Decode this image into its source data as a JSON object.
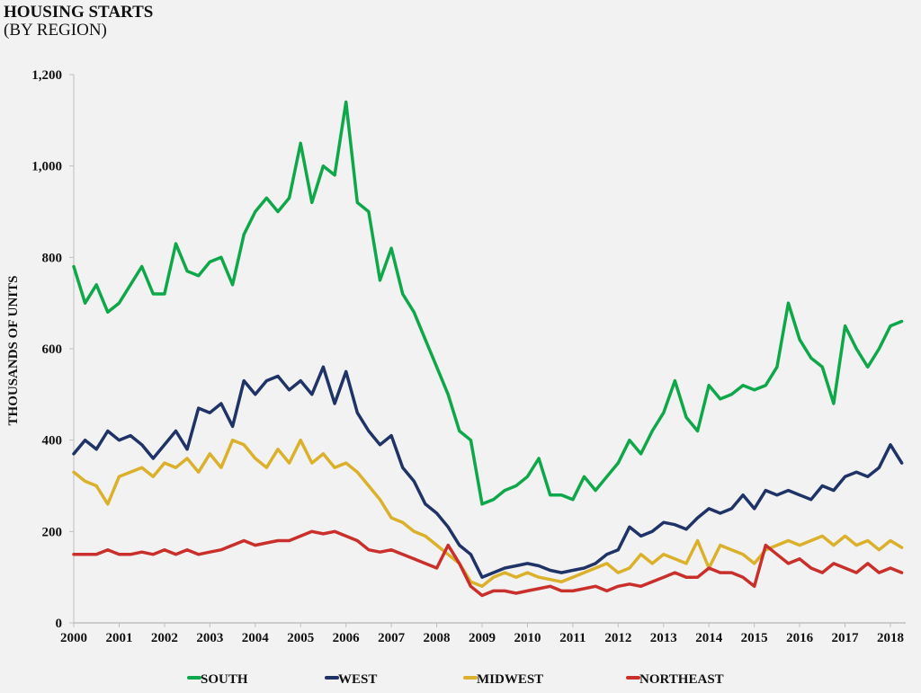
{
  "chart_data": {
    "type": "line",
    "title": "HOUSING STARTS",
    "subtitle": "(BY REGION)",
    "xlabel": "",
    "ylabel": "THOUSANDS OF UNITS",
    "xlim": [
      2000,
      2018.3
    ],
    "ylim": [
      0,
      1200
    ],
    "x_ticks": [
      "2000",
      "2001",
      "2002",
      "2003",
      "2004",
      "2005",
      "2006",
      "2007",
      "2008",
      "2009",
      "2010",
      "2011",
      "2012",
      "2013",
      "2014",
      "2015",
      "2016",
      "2017",
      "2018"
    ],
    "y_ticks": [
      "0",
      "200",
      "400",
      "600",
      "800",
      "1,000",
      "1,200"
    ],
    "grid": false,
    "legend": "bottom",
    "x": [
      2000,
      2000.25,
      2000.5,
      2000.75,
      2001,
      2001.25,
      2001.5,
      2001.75,
      2002,
      2002.25,
      2002.5,
      2002.75,
      2003,
      2003.25,
      2003.5,
      2003.75,
      2004,
      2004.25,
      2004.5,
      2004.75,
      2005,
      2005.25,
      2005.5,
      2005.75,
      2006,
      2006.25,
      2006.5,
      2006.75,
      2007,
      2007.25,
      2007.5,
      2007.75,
      2008,
      2008.25,
      2008.5,
      2008.75,
      2009,
      2009.25,
      2009.5,
      2009.75,
      2010,
      2010.25,
      2010.5,
      2010.75,
      2011,
      2011.25,
      2011.5,
      2011.75,
      2012,
      2012.25,
      2012.5,
      2012.75,
      2013,
      2013.25,
      2013.5,
      2013.75,
      2014,
      2014.25,
      2014.5,
      2014.75,
      2015,
      2015.25,
      2015.5,
      2015.75,
      2016,
      2016.25,
      2016.5,
      2016.75,
      2017,
      2017.25,
      2017.5,
      2017.75,
      2018,
      2018.25
    ],
    "series": [
      {
        "name": "SOUTH",
        "color": "#0ea84a",
        "values": [
          780,
          700,
          740,
          680,
          700,
          740,
          780,
          720,
          720,
          830,
          770,
          760,
          790,
          800,
          740,
          850,
          900,
          930,
          900,
          930,
          1050,
          920,
          1000,
          980,
          1140,
          920,
          900,
          750,
          820,
          720,
          680,
          620,
          560,
          500,
          420,
          400,
          260,
          270,
          290,
          300,
          320,
          360,
          280,
          280,
          270,
          320,
          290,
          320,
          350,
          400,
          370,
          420,
          460,
          530,
          450,
          420,
          520,
          490,
          500,
          520,
          510,
          520,
          560,
          700,
          620,
          580,
          560,
          480,
          650,
          600,
          560,
          600,
          650,
          660
        ]
      },
      {
        "name": "WEST",
        "color": "#1f3366",
        "values": [
          370,
          400,
          380,
          420,
          400,
          410,
          390,
          360,
          390,
          420,
          380,
          470,
          460,
          480,
          430,
          530,
          500,
          530,
          540,
          510,
          530,
          500,
          560,
          480,
          550,
          460,
          420,
          390,
          410,
          340,
          310,
          260,
          240,
          210,
          170,
          150,
          100,
          110,
          120,
          125,
          130,
          125,
          115,
          110,
          115,
          120,
          130,
          150,
          160,
          210,
          190,
          200,
          220,
          215,
          205,
          230,
          250,
          240,
          250,
          280,
          250,
          290,
          280,
          290,
          280,
          270,
          300,
          290,
          320,
          330,
          320,
          340,
          390,
          350
        ]
      },
      {
        "name": "MIDWEST",
        "color": "#dbb02a",
        "values": [
          330,
          310,
          300,
          260,
          320,
          330,
          340,
          320,
          350,
          340,
          360,
          330,
          370,
          340,
          400,
          390,
          360,
          340,
          380,
          350,
          400,
          350,
          370,
          340,
          350,
          330,
          300,
          270,
          230,
          220,
          200,
          190,
          170,
          150,
          130,
          90,
          80,
          100,
          110,
          100,
          110,
          100,
          95,
          90,
          100,
          110,
          120,
          130,
          110,
          120,
          150,
          130,
          150,
          140,
          130,
          180,
          120,
          170,
          160,
          150,
          130,
          160,
          170,
          180,
          170,
          180,
          190,
          170,
          190,
          170,
          180,
          160,
          180,
          165
        ]
      },
      {
        "name": "NORTHEAST",
        "color": "#c9302c",
        "values": [
          150,
          150,
          150,
          160,
          150,
          150,
          155,
          150,
          160,
          150,
          160,
          150,
          155,
          160,
          170,
          180,
          170,
          175,
          180,
          180,
          190,
          200,
          195,
          200,
          190,
          180,
          160,
          155,
          160,
          150,
          140,
          130,
          120,
          170,
          130,
          80,
          60,
          70,
          70,
          65,
          70,
          75,
          80,
          70,
          70,
          75,
          80,
          70,
          80,
          85,
          80,
          90,
          100,
          110,
          100,
          100,
          120,
          110,
          110,
          100,
          80,
          170,
          150,
          130,
          140,
          120,
          110,
          130,
          120,
          110,
          130,
          110,
          120,
          110
        ]
      }
    ]
  }
}
